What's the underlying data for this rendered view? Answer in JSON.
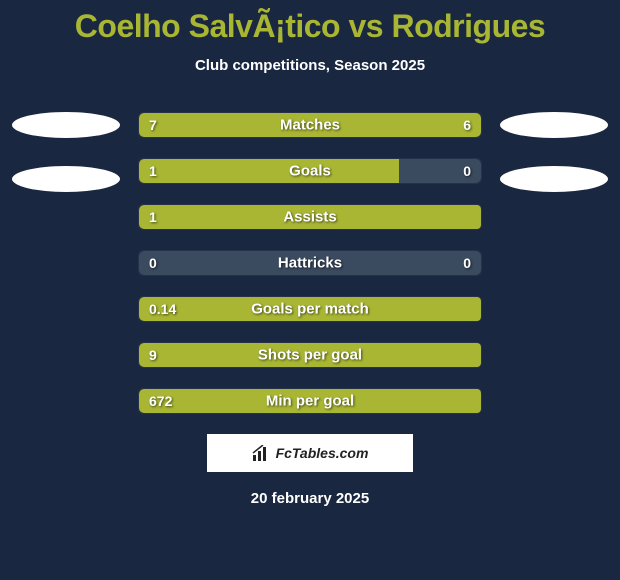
{
  "title": "Coelho SalvÃ¡tico vs Rodrigues",
  "subtitle": "Club competitions, Season 2025",
  "date": "20 february 2025",
  "badge": "FcTables.com",
  "colors": {
    "background": "#1a2740",
    "accent": "#a8b634",
    "left_bar": "#c4b454",
    "right_bar": "#a8b634",
    "neutral_bar": "#3a4a5f",
    "photo_bg": "#ffffff"
  },
  "stats": [
    {
      "label": "Matches",
      "left_val": "7",
      "right_val": "6",
      "left_raw": 7,
      "right_raw": 6,
      "left_color": "#a8b634",
      "right_color": "#a8b634",
      "show_right": true
    },
    {
      "label": "Goals",
      "left_val": "1",
      "right_val": "0",
      "left_raw": 1,
      "right_raw": 0,
      "left_color": "#a8b634",
      "right_color": "#3a4a5f",
      "show_right": true,
      "force_left_pct": 76,
      "force_right_pct": 24
    },
    {
      "label": "Assists",
      "left_val": "1",
      "right_val": "",
      "left_raw": 1,
      "right_raw": 0,
      "left_color": "#a8b634",
      "right_color": "#a8b634",
      "show_right": false,
      "force_left_pct": 100,
      "force_right_pct": 0
    },
    {
      "label": "Hattricks",
      "left_val": "0",
      "right_val": "0",
      "left_raw": 0,
      "right_raw": 0,
      "left_color": "#3a4a5f",
      "right_color": "#3a4a5f",
      "show_right": true,
      "force_left_pct": 50,
      "force_right_pct": 50
    },
    {
      "label": "Goals per match",
      "left_val": "0.14",
      "right_val": "",
      "left_raw": 0.14,
      "right_raw": 0,
      "left_color": "#a8b634",
      "right_color": "#a8b634",
      "show_right": false,
      "force_left_pct": 100,
      "force_right_pct": 0
    },
    {
      "label": "Shots per goal",
      "left_val": "9",
      "right_val": "",
      "left_raw": 9,
      "right_raw": 0,
      "left_color": "#a8b634",
      "right_color": "#a8b634",
      "show_right": false,
      "force_left_pct": 100,
      "force_right_pct": 0
    },
    {
      "label": "Min per goal",
      "left_val": "672",
      "right_val": "",
      "left_raw": 672,
      "right_raw": 0,
      "left_color": "#a8b634",
      "right_color": "#a8b634",
      "show_right": false,
      "force_left_pct": 100,
      "force_right_pct": 0
    }
  ]
}
